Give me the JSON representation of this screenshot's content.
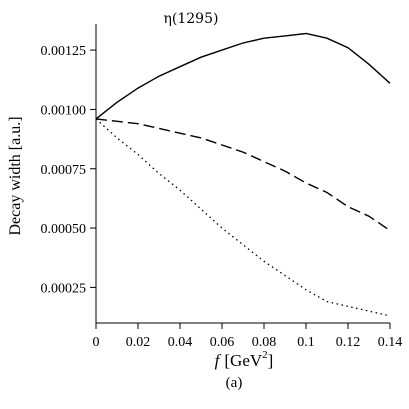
{
  "chart_data": {
    "type": "line",
    "title": "η(1295)",
    "xlabel_prefix": "f",
    "xlabel_unit": "[GeV",
    "xlabel_exp": "2",
    "xlabel_close": "]",
    "ylabel": "Decay width [a.u.]",
    "panel_label": "(a)",
    "xlim": [
      0,
      0.14
    ],
    "ylim": [
      0.0001,
      0.00136
    ],
    "xticks": [
      0,
      0.02,
      0.04,
      0.06,
      0.08,
      0.1,
      0.12,
      0.14
    ],
    "xtick_labels": [
      "0",
      "0.02",
      "0.04",
      "0.06",
      "0.08",
      "0.1",
      "0.12",
      "0.14"
    ],
    "yticks": [
      0.00025,
      0.0005,
      0.00075,
      0.001,
      0.00125
    ],
    "ytick_labels": [
      "0.00025",
      "0.00050",
      "0.00075",
      "0.00100",
      "0.00125"
    ],
    "grid": false,
    "legend": "none",
    "series": [
      {
        "style": "solid",
        "x": [
          0,
          0.01,
          0.02,
          0.03,
          0.04,
          0.05,
          0.06,
          0.07,
          0.08,
          0.09,
          0.1,
          0.11,
          0.12,
          0.13,
          0.135,
          0.14
        ],
        "y": [
          0.00096,
          0.00103,
          0.00109,
          0.00114,
          0.00118,
          0.00122,
          0.00125,
          0.00128,
          0.0013,
          0.00131,
          0.00132,
          0.0013,
          0.00126,
          0.00119,
          0.00115,
          0.00111
        ]
      },
      {
        "style": "dashed",
        "x": [
          0,
          0.01,
          0.02,
          0.03,
          0.04,
          0.05,
          0.06,
          0.07,
          0.08,
          0.09,
          0.1,
          0.11,
          0.12,
          0.13,
          0.14
        ],
        "y": [
          0.00096,
          0.00095,
          0.00094,
          0.00092,
          0.0009,
          0.00088,
          0.00085,
          0.00082,
          0.00078,
          0.00074,
          0.00069,
          0.00065,
          0.00059,
          0.00055,
          0.00049
        ]
      },
      {
        "style": "dotted",
        "x": [
          0,
          0.01,
          0.02,
          0.03,
          0.04,
          0.05,
          0.06,
          0.07,
          0.08,
          0.09,
          0.1,
          0.11,
          0.12,
          0.13,
          0.14
        ],
        "y": [
          0.00096,
          0.00088,
          0.00081,
          0.00073,
          0.00066,
          0.00058,
          0.0005,
          0.00043,
          0.00036,
          0.0003,
          0.00024,
          0.00019,
          0.00017,
          0.00015,
          0.00013
        ]
      }
    ]
  }
}
